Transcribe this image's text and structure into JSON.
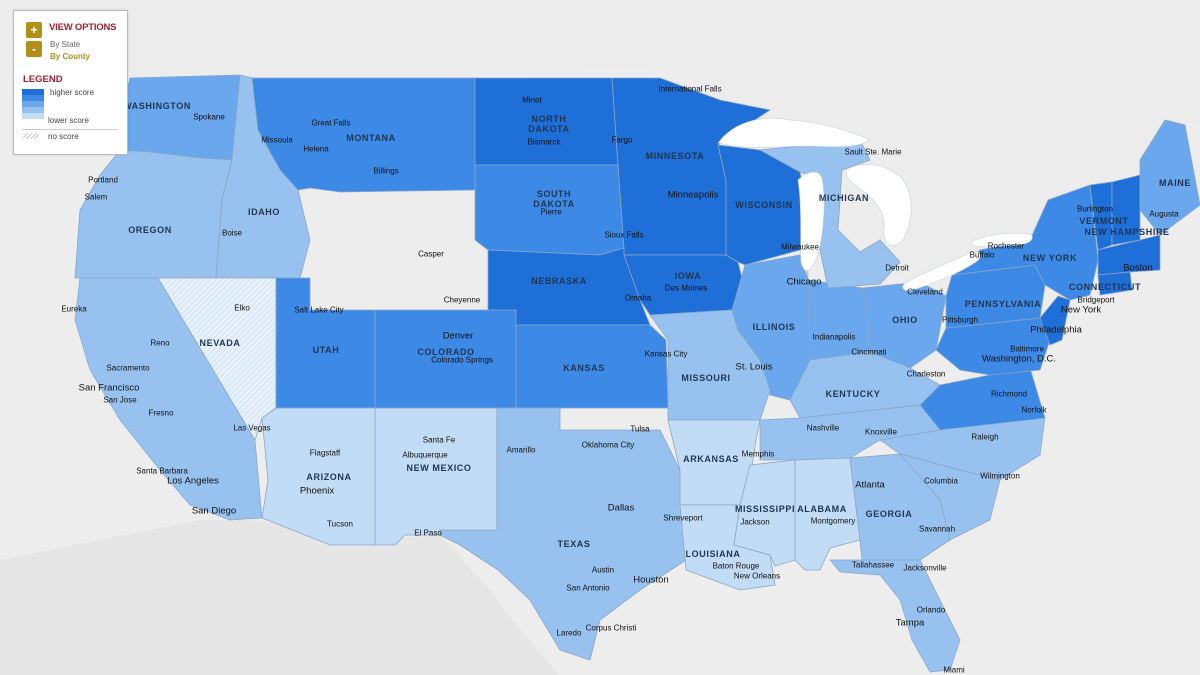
{
  "controls": {
    "zoom_in_label": "+",
    "zoom_out_label": "-",
    "view_options_title": "VIEW OPTIONS",
    "view_options": [
      {
        "label": "By State",
        "selected": false
      },
      {
        "label": "By County",
        "selected": true
      }
    ],
    "selected_color": "#b38f1a",
    "unselected_color": "#666666",
    "title_color": "#a51f2e"
  },
  "legend": {
    "title": "LEGEND",
    "high_label": "higher score",
    "low_label": "lower score",
    "no_score_label": "no score",
    "colors": [
      "#1f6fd8",
      "#3d8ae6",
      "#6aa7ec",
      "#97c2f0",
      "#c3dcf6"
    ]
  },
  "states": [
    {
      "name": "WASHINGTON",
      "level": 2
    },
    {
      "name": "OREGON",
      "level": 3
    },
    {
      "name": "IDAHO",
      "level": 3
    },
    {
      "name": "MONTANA",
      "level": 1
    },
    {
      "name": "NEVADA",
      "level": 5
    },
    {
      "name": "UTAH",
      "level": 1
    },
    {
      "name": "ARIZONA",
      "level": 4
    },
    {
      "name": "NEW MEXICO",
      "level": 4
    },
    {
      "name": "COLORADO",
      "level": 1
    },
    {
      "name": "NORTH DAKOTA",
      "level": 0
    },
    {
      "name": "SOUTH DAKOTA",
      "level": 1
    },
    {
      "name": "NEBRASKA",
      "level": 0
    },
    {
      "name": "KANSAS",
      "level": 1
    },
    {
      "name": "MINNESOTA",
      "level": 0
    },
    {
      "name": "IOWA",
      "level": 0
    },
    {
      "name": "MISSOURI",
      "level": 3
    },
    {
      "name": "WISCONSIN",
      "level": 0
    },
    {
      "name": "ILLINOIS",
      "level": 2
    },
    {
      "name": "MICHIGAN",
      "level": 3
    },
    {
      "name": "OHIO",
      "level": 2
    },
    {
      "name": "KENTUCKY",
      "level": 3
    },
    {
      "name": "TEXAS",
      "level": 3
    },
    {
      "name": "ARKANSAS",
      "level": 4
    },
    {
      "name": "LOUISIANA",
      "level": 4
    },
    {
      "name": "MISSISSIPPI",
      "level": 4
    },
    {
      "name": "ALABAMA",
      "level": 4
    },
    {
      "name": "GEORGIA",
      "level": 3
    },
    {
      "name": "PENNSYLVANIA",
      "level": 1
    },
    {
      "name": "NEW YORK",
      "level": 1
    },
    {
      "name": "MAINE",
      "level": 2
    },
    {
      "name": "VERMONT",
      "level": 0
    },
    {
      "name": "NEW HAMPSHIRE",
      "level": 0
    },
    {
      "name": "CONNECTICUT",
      "level": 0
    }
  ],
  "state_labels": [
    "WASHINGTON",
    "OREGON",
    "IDAHO",
    "MONTANA",
    "NEVADA",
    "UTAH",
    "ARIZONA",
    "NEW MEXICO",
    "COLORADO",
    "NORTH\nDAKOTA",
    "SOUTH\nDAKOTA",
    "NEBRASKA",
    "KANSAS",
    "MINNESOTA",
    "IOWA",
    "MISSOURI",
    "WISCONSIN",
    "ILLINOIS",
    "MICHIGAN",
    "OHIO",
    "KENTUCKY",
    "TEXAS",
    "ARKANSAS",
    "LOUISIANA",
    "MISSISSIPPI",
    "ALABAMA",
    "GEORGIA",
    "PENNSYLVANIA",
    "NEW YORK",
    "MAINE",
    "VERMONT",
    "NEW HAMPSHIRE",
    "CONNECTICUT"
  ],
  "cities": [
    "Spokane",
    "Missoula",
    "Great Falls",
    "Helena",
    "Billings",
    "Portland",
    "Salem",
    "Boise",
    "Eureka",
    "Reno",
    "Elko",
    "Sacramento",
    "San Francisco",
    "San Jose",
    "Fresno",
    "Las Vegas",
    "Santa Barbara",
    "Los Angeles",
    "San Diego",
    "Salt Lake City",
    "Flagstaff",
    "Phoenix",
    "Tucson",
    "Santa Fe",
    "Albuquerque",
    "El Paso",
    "Casper",
    "Cheyenne",
    "Denver",
    "Colorado Springs",
    "Minot",
    "Bismarck",
    "Fargo",
    "International Falls",
    "Pierre",
    "Sioux Falls",
    "Minneapolis",
    "Omaha",
    "Des Moines",
    "Kansas City",
    "Amarillo",
    "Tulsa",
    "Oklahoma City",
    "Dallas",
    "Austin",
    "San Antonio",
    "Houston",
    "Corpus Christi",
    "Laredo",
    "Shreveport",
    "Baton Rouge",
    "New Orleans",
    "Memphis",
    "Jackson",
    "Montgomery",
    "Atlanta",
    "Tallahassee",
    "Jacksonville",
    "Orlando",
    "Tampa",
    "Miami",
    "Savannah",
    "Columbia",
    "Wilmington",
    "Raleigh",
    "Nashville",
    "Knoxville",
    "St. Louis",
    "Indianapolis",
    "Cincinnati",
    "Chicago",
    "Milwaukee",
    "Detroit",
    "Cleveland",
    "Pittsburgh",
    "Charleston",
    "Richmond",
    "Norfolk",
    "Washington, D.C.",
    "Baltimore",
    "Philadelphia",
    "New York",
    "Bridgeport",
    "Boston",
    "Augusta",
    "Burlington",
    "Buffalo",
    "Rochester",
    "Sault Ste. Marie"
  ]
}
